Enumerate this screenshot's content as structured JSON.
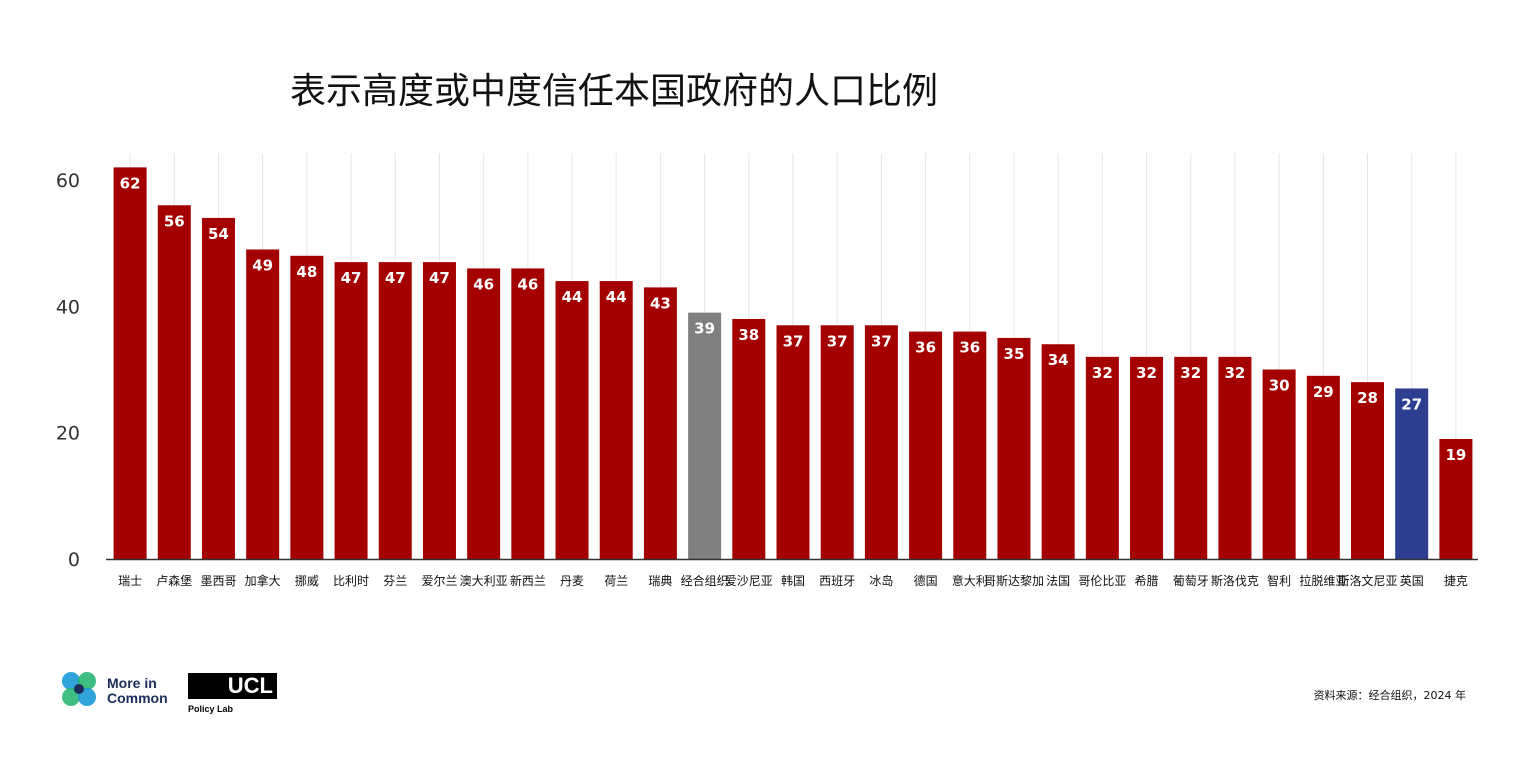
{
  "chart_data": {
    "type": "bar",
    "title": "表示高度或中度信任本国政府的人口比例",
    "categories": [
      "瑞士",
      "卢森堡",
      "墨西哥",
      "加拿大",
      "挪威",
      "比利时",
      "芬兰",
      "爱尔兰",
      "澳大利亚",
      "新西兰",
      "丹麦",
      "荷兰",
      "瑞典",
      "经合组织",
      "爱沙尼亚",
      "韩国",
      "西班牙",
      "冰岛",
      "德国",
      "意大利",
      "哥斯达黎加",
      "法国",
      "哥伦比亚",
      "希腊",
      "葡萄牙",
      "斯洛伐克",
      "智利",
      "拉脱维亚",
      "斯洛文尼亚",
      "英国",
      "捷克"
    ],
    "values": [
      62,
      56,
      54,
      49,
      48,
      47,
      47,
      47,
      46,
      46,
      44,
      44,
      43,
      39,
      38,
      37,
      37,
      37,
      36,
      36,
      35,
      34,
      32,
      32,
      32,
      32,
      30,
      29,
      28,
      27,
      19
    ],
    "data_labels": [
      "62",
      "56",
      "54",
      "49",
      "48",
      "47",
      "47",
      "47",
      "46",
      "46",
      "44",
      "44",
      "43",
      "39",
      "38",
      "37",
      "37",
      "37",
      "36",
      "36",
      "35",
      "34",
      "32",
      "32",
      "32",
      "32",
      "30",
      "29",
      "28",
      "27",
      "19"
    ],
    "yticks": [
      "0",
      "20",
      "40",
      "60"
    ],
    "ylim": [
      0,
      65
    ],
    "xlabel": "",
    "ylabel": "",
    "grid": "vertical",
    "colors": {
      "default": "#a50000",
      "oecd": "#808080",
      "uk": "#2d3e91",
      "axis": "#333333",
      "grid": "#e6e6e6"
    },
    "highlight": {
      "经合组织": "oecd",
      "英国": "uk"
    }
  },
  "footer": {
    "logo_text_line1": "More in",
    "logo_text_line2": "Common",
    "ucl_logo": "UCL",
    "ucl_sub": "Policy Lab",
    "source": "资料来源：经合组织，2024 年"
  }
}
